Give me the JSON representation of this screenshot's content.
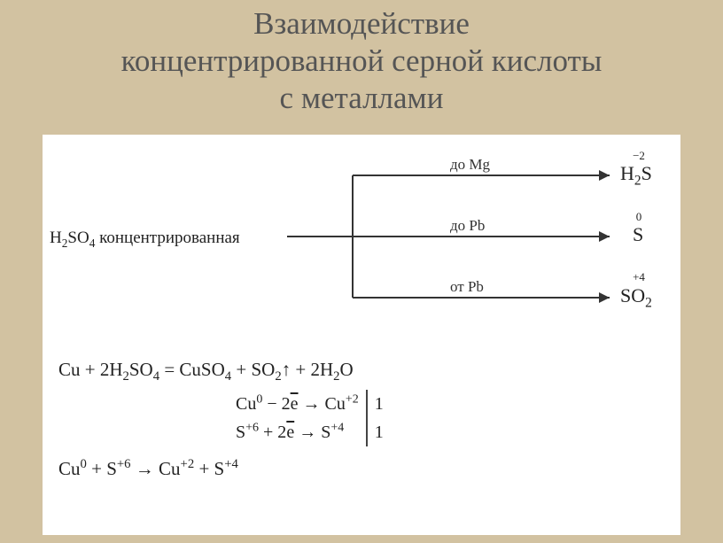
{
  "title_line1": "Взаимодействие",
  "title_line2": "концентрированной серной кислоты",
  "title_line3": "с металлами",
  "diagram": {
    "reagent_formula_html": "H<span class='sub'>2</span>SO<span class='sub'>4</span> концентрированная",
    "branches": [
      {
        "label": "до Mg",
        "product_html": "H<span class='sub'>2</span>S",
        "oxstate": "−2"
      },
      {
        "label": "до Pb",
        "product_html": "S",
        "oxstate": "0"
      },
      {
        "label": "от Pb",
        "product_html": "SO<span class='sub'>2</span>",
        "oxstate": "+4"
      }
    ]
  },
  "equations": {
    "main_html": "Cu + 2H<span class='sub'>2</span>SO<span class='sub'>4</span> = CuSO<span class='sub'>4</span> + SO<span class='sub'>2</span>↑ + 2H<span class='sub'>2</span>O",
    "half1_html": "Cu<span class='sup'>0</span> − 2<span class='ebar'>e</span> → Cu<span class='sup'>+2</span>",
    "half2_html": "S<span class='sup'>+6</span> + 2<span class='ebar'>e</span> → S<span class='sup'>+4</span>",
    "coef1": "1",
    "coef2": "1",
    "sum_html": "Cu<span class='sup'>0</span> + S<span class='sup'>+6</span> → Cu<span class='sup'>+2</span> + S<span class='sup'>+4</span>"
  },
  "style": {
    "bg": "#d2c2a1",
    "title_color": "#555555",
    "text_color": "#222222",
    "line_color": "#333333"
  }
}
